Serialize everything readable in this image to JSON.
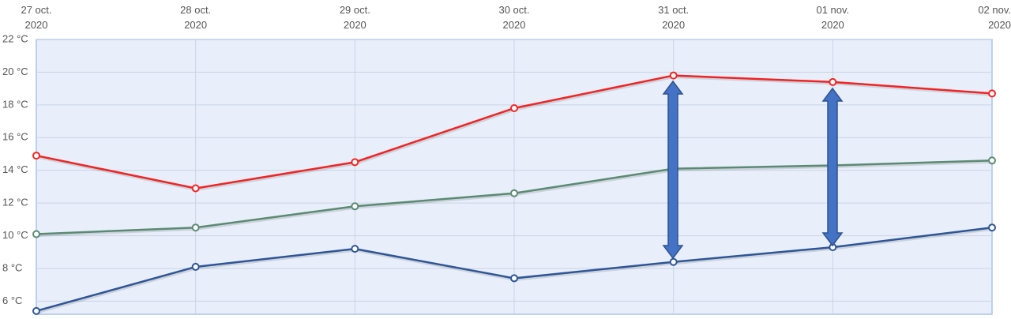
{
  "chart_data": {
    "type": "line",
    "categories": [
      "27 oct. 2020",
      "28 oct. 2020",
      "29 oct. 2020",
      "30 oct. 2020",
      "31 oct. 2020",
      "01 nov. 2020",
      "02 nov. 2020"
    ],
    "series": [
      {
        "color": "#f02424",
        "values": [
          14.9,
          12.9,
          14.5,
          17.8,
          19.8,
          19.4,
          18.7
        ]
      },
      {
        "color": "#5b8a72",
        "values": [
          10.1,
          10.5,
          11.8,
          12.6,
          14.1,
          14.3,
          14.6
        ]
      },
      {
        "color": "#2e5597",
        "values": [
          5.4,
          8.1,
          9.2,
          7.4,
          8.4,
          9.3,
          10.5
        ]
      }
    ],
    "ylim": [
      5.2,
      22
    ],
    "yticks": [
      {
        "value": 6,
        "label": "6 °C"
      },
      {
        "value": 8,
        "label": "8 °C"
      },
      {
        "value": 10,
        "label": "10 °C"
      },
      {
        "value": 12,
        "label": "12 °C"
      },
      {
        "value": 14,
        "label": "14 °C"
      },
      {
        "value": 16,
        "label": "16 °C"
      },
      {
        "value": 18,
        "label": "18 °C"
      },
      {
        "value": 20,
        "label": "20 °C"
      },
      {
        "value": 22,
        "label": "22 °C"
      }
    ],
    "grid": true
  }
}
